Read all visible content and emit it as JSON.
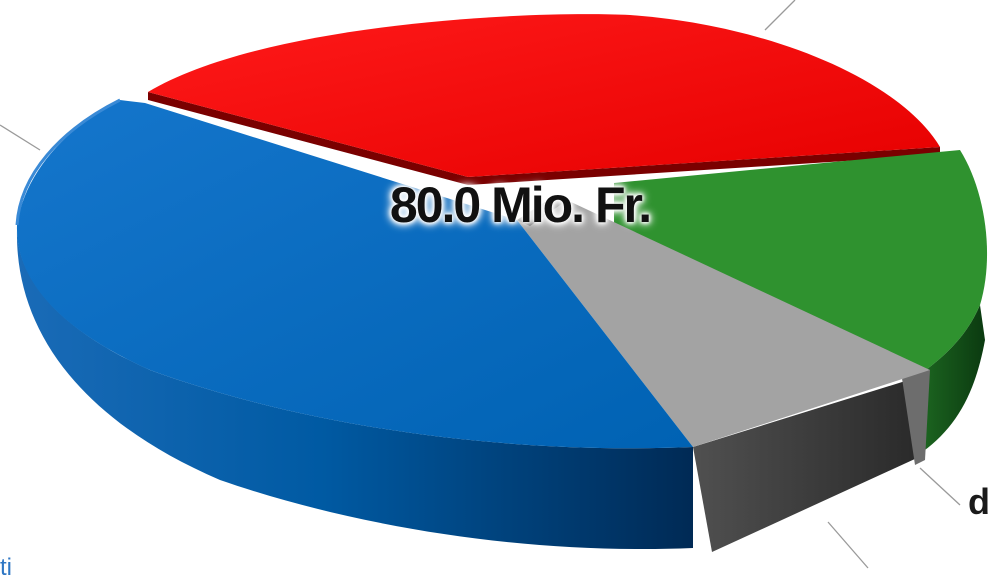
{
  "chart_data": {
    "type": "pie",
    "center_label": "80.0 Mio. Fr.",
    "slices": [
      {
        "color": "#ee0000",
        "share": 0.31
      },
      {
        "color": "#2e8b2e",
        "share": 0.14
      },
      {
        "color": "#a6a6a6",
        "share": 0.09
      },
      {
        "color": "#0067b8",
        "share": 0.46
      }
    ],
    "exploded_slice": 2,
    "style": "3d"
  },
  "label_fragments": {
    "right": "d",
    "bottom_left": "ti"
  }
}
